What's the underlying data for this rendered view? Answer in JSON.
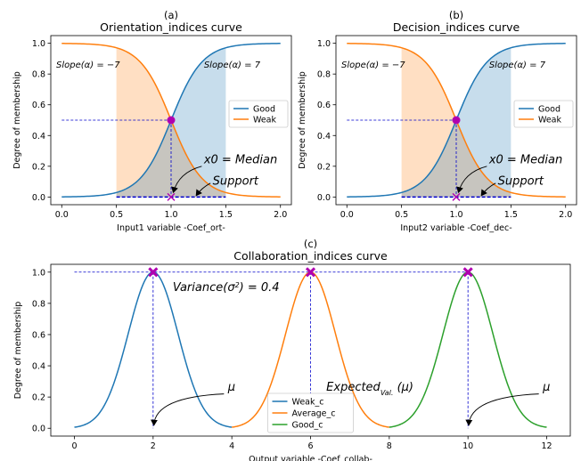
{
  "chart_data": [
    {
      "panel_label": "(a)",
      "title": "Orientation_indices curve",
      "type": "line",
      "xlabel": "Input1 variable -Coef_ort-",
      "ylabel": "Degree of membership",
      "xlim": [
        -0.1,
        2.1
      ],
      "ylim": [
        -0.05,
        1.05
      ],
      "xticks": [
        "0.0",
        "0.5",
        "1.0",
        "1.5",
        "2.0"
      ],
      "yticks": [
        "0.0",
        "0.2",
        "0.4",
        "0.6",
        "0.8",
        "1.0"
      ],
      "sigmoid_center": 1.0,
      "sigmoid_slope": 7,
      "x_range": [
        0,
        2
      ],
      "series": [
        {
          "name": "Good",
          "kind": "sigmoid_rising",
          "color": "#1f77b4"
        },
        {
          "name": "Weak",
          "kind": "sigmoid_falling",
          "color": "#ff7f0e"
        }
      ],
      "shaded_support": [
        0.5,
        1.5
      ],
      "marker_point": [
        1.0,
        0.5
      ],
      "legend": "center-right",
      "annotations": {
        "slope_left": "Slope(α) = −7",
        "slope_right": "Slope(α) = 7",
        "x0": "x0 = Median",
        "support": "Support"
      }
    },
    {
      "panel_label": "(b)",
      "title": "Decision_indices curve",
      "type": "line",
      "xlabel": "Input2 variable -Coef_dec-",
      "ylabel": "Degree of membership",
      "xlim": [
        -0.1,
        2.1
      ],
      "ylim": [
        -0.05,
        1.05
      ],
      "xticks": [
        "0.0",
        "0.5",
        "1.0",
        "1.5",
        "2.0"
      ],
      "yticks": [
        "0.0",
        "0.2",
        "0.4",
        "0.6",
        "0.8",
        "1.0"
      ],
      "sigmoid_center": 1.0,
      "sigmoid_slope": 7,
      "x_range": [
        0,
        2
      ],
      "series": [
        {
          "name": "Good",
          "kind": "sigmoid_rising",
          "color": "#1f77b4"
        },
        {
          "name": "Weak",
          "kind": "sigmoid_falling",
          "color": "#ff7f0e"
        }
      ],
      "shaded_support": [
        0.5,
        1.5
      ],
      "marker_point": [
        1.0,
        0.5
      ],
      "legend": "center-right",
      "annotations": {
        "slope_left": "Slope(α) = −7",
        "slope_right": "Slope(α) = 7",
        "x0": "x0 = Median",
        "support": "Support"
      }
    },
    {
      "panel_label": "(c)",
      "title": "Collaboration_indices curve",
      "type": "line",
      "xlabel": "Output variable -Coef_collab-",
      "ylabel": "Degree of membership",
      "xlim": [
        -0.6,
        12.6
      ],
      "ylim": [
        -0.05,
        1.05
      ],
      "xticks": [
        "0",
        "2",
        "4",
        "6",
        "8",
        "10",
        "12"
      ],
      "yticks": [
        "0.0",
        "0.2",
        "0.4",
        "0.6",
        "0.8",
        "1.0"
      ],
      "variance": 0.4,
      "series": [
        {
          "name": "Weak_c",
          "mu": 2,
          "x_range": [
            0,
            4
          ],
          "color": "#1f77b4"
        },
        {
          "name": "Average_c",
          "mu": 6,
          "x_range": [
            4,
            8
          ],
          "color": "#ff7f0e"
        },
        {
          "name": "Good_c",
          "mu": 10,
          "x_range": [
            8,
            12
          ],
          "color": "#2ca02c"
        }
      ],
      "peak_points": [
        [
          2,
          1.0
        ],
        [
          6,
          1.0
        ],
        [
          10,
          1.0
        ]
      ],
      "legend": "bottom-center",
      "annotations": {
        "variance_prefix": "Variance(σ",
        "variance_sup": "2",
        "variance_suffix": ") = 0.4",
        "expected_main": "Expected",
        "expected_sub": "Val.",
        "expected_tail": "(μ)",
        "mu": "μ"
      }
    }
  ]
}
